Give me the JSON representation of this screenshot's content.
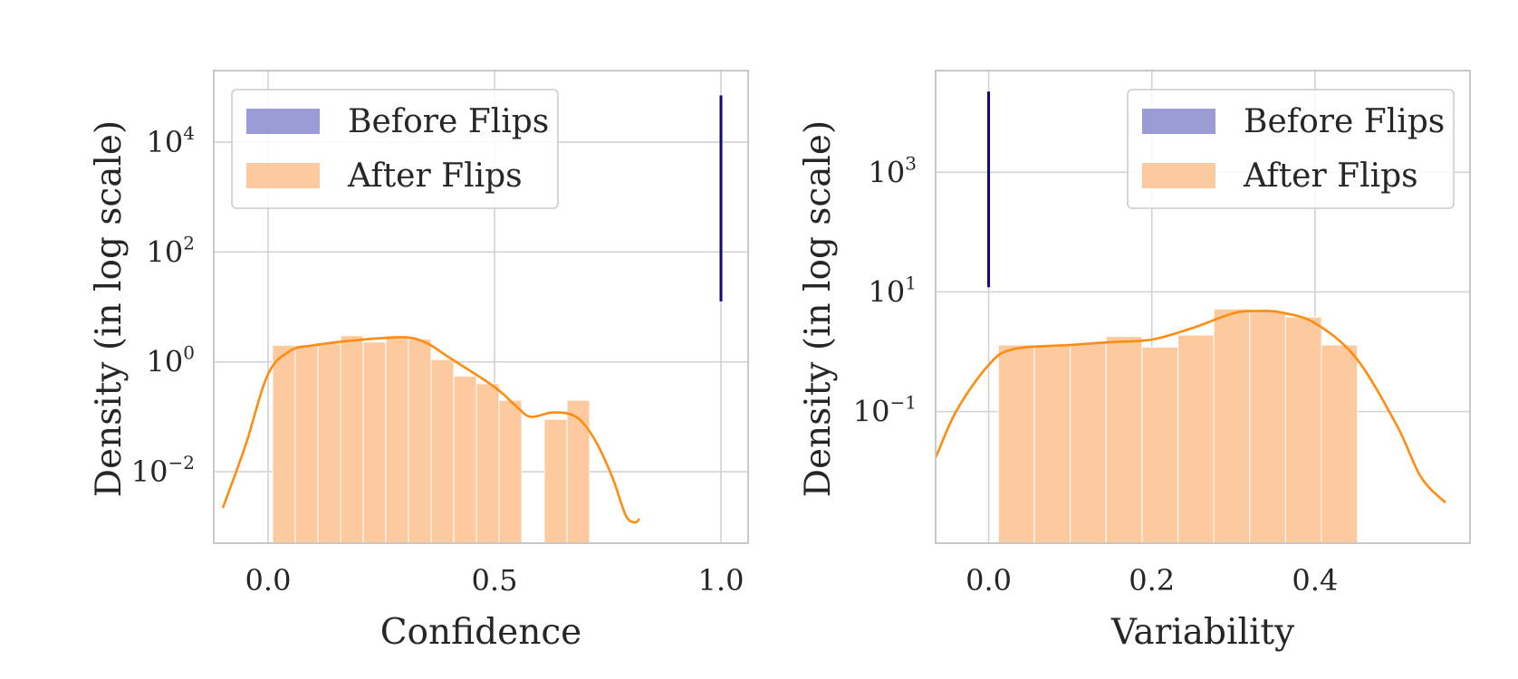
{
  "colors": {
    "before": "#0b0b7a",
    "before_legend": "#9b9bd6",
    "after_fill": "#fdc99f",
    "after_line": "#ff8c10",
    "grid": "#d2d2d2",
    "frame": "#c8c8c8"
  },
  "chart_data": [
    {
      "type": "histogram",
      "xlabel": "Confidence",
      "ylabel": "Density (in log scale)",
      "yscale": "log",
      "xlim": [
        -0.12,
        1.06
      ],
      "ylim_log10": [
        -3.3,
        5.3
      ],
      "xticks": [
        {
          "value": 0.0,
          "label": "0.0"
        },
        {
          "value": 0.5,
          "label": "0.5"
        },
        {
          "value": 1.0,
          "label": "1.0"
        }
      ],
      "yticks": [
        {
          "exp": 4,
          "base": "10",
          "sup": "4"
        },
        {
          "exp": 2,
          "base": "10",
          "sup": "2"
        },
        {
          "exp": 0,
          "base": "10",
          "sup": "0"
        },
        {
          "exp": -2,
          "base": "10",
          "sup": "−2"
        }
      ],
      "legend": {
        "position": "upper-left",
        "entries": [
          {
            "series": "before",
            "label": "Before Flips"
          },
          {
            "series": "after",
            "label": "After Flips"
          }
        ]
      },
      "before": {
        "x": 1.0,
        "ymin_log10": 1.1,
        "ymax_log10": 4.85
      },
      "after_bins": {
        "edges": [
          0.01,
          0.06,
          0.11,
          0.16,
          0.21,
          0.26,
          0.31,
          0.36,
          0.41,
          0.46,
          0.51,
          0.56,
          0.61,
          0.66,
          0.71
        ],
        "values": [
          2.0,
          2.0,
          2.2,
          3.0,
          2.3,
          3.0,
          2.6,
          1.1,
          0.55,
          0.4,
          0.2,
          0,
          0.09,
          0.2
        ]
      },
      "after_kde": {
        "x": [
          -0.1,
          -0.05,
          0.0,
          0.05,
          0.1,
          0.2,
          0.3,
          0.35,
          0.4,
          0.5,
          0.55,
          0.58,
          0.63,
          0.68,
          0.72,
          0.76,
          0.79,
          0.81,
          0.82
        ],
        "y": [
          0.0022,
          0.03,
          0.6,
          1.6,
          2.0,
          2.5,
          2.8,
          2.2,
          1.2,
          0.35,
          0.15,
          0.1,
          0.12,
          0.1,
          0.04,
          0.008,
          0.0016,
          0.0012,
          0.0014
        ]
      }
    },
    {
      "type": "histogram",
      "xlabel": "Variability",
      "ylabel": "Density (in log scale)",
      "yscale": "log",
      "xlim": [
        -0.065,
        0.59
      ],
      "ylim_log10": [
        -3.2,
        4.7
      ],
      "xticks": [
        {
          "value": 0.0,
          "label": "0.0"
        },
        {
          "value": 0.2,
          "label": "0.2"
        },
        {
          "value": 0.4,
          "label": "0.4"
        }
      ],
      "yticks": [
        {
          "exp": 3,
          "base": "10",
          "sup": "3"
        },
        {
          "exp": 1,
          "base": "10",
          "sup": "1"
        },
        {
          "exp": -1,
          "base": "10",
          "sup": "−1"
        }
      ],
      "legend": {
        "position": "upper-right",
        "entries": [
          {
            "series": "before",
            "label": "Before Flips"
          },
          {
            "series": "after",
            "label": "After Flips"
          }
        ]
      },
      "before": {
        "x": 0.0,
        "ymin_log10": 1.08,
        "ymax_log10": 4.35
      },
      "after_bins": {
        "edges": [
          0.012,
          0.056,
          0.1,
          0.144,
          0.188,
          0.232,
          0.276,
          0.32,
          0.364,
          0.408,
          0.452
        ],
        "values": [
          1.3,
          1.3,
          1.4,
          1.8,
          1.2,
          1.9,
          5.2,
          4.8,
          3.8,
          1.3
        ]
      },
      "after_kde": {
        "x": [
          -0.095,
          -0.07,
          -0.04,
          0.0,
          0.03,
          0.1,
          0.15,
          0.2,
          0.25,
          0.3,
          0.33,
          0.36,
          0.4,
          0.45,
          0.5,
          0.53,
          0.56
        ],
        "y": [
          0.003,
          0.012,
          0.1,
          0.6,
          1.1,
          1.3,
          1.45,
          1.6,
          2.5,
          4.4,
          4.8,
          4.5,
          3.0,
          0.8,
          0.06,
          0.008,
          0.003
        ]
      }
    }
  ]
}
